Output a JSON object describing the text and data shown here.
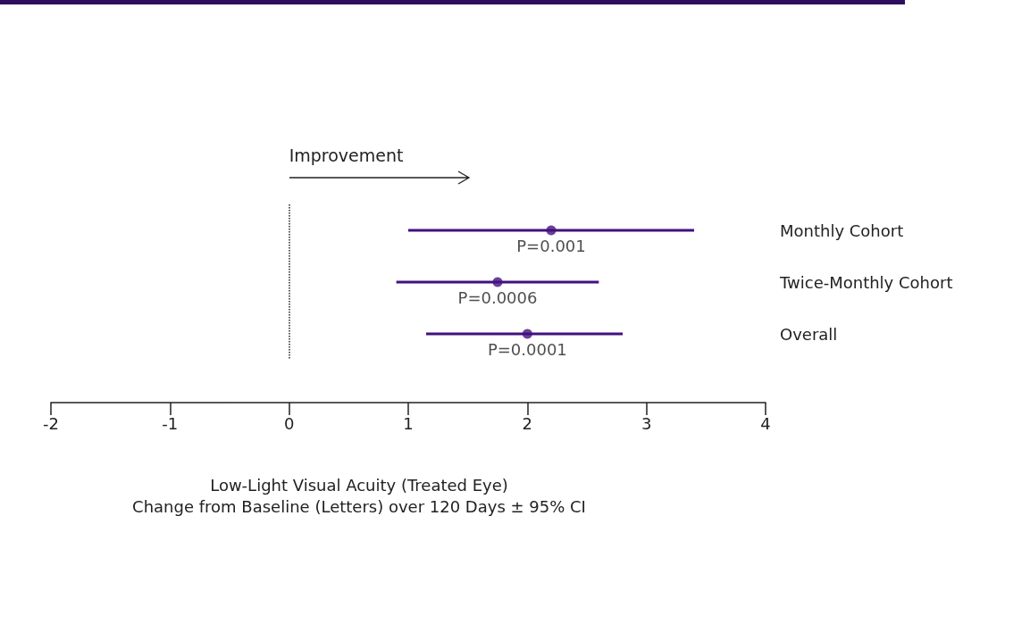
{
  "chart_data": {
    "type": "scatter",
    "orientation": "horizontal",
    "xlabel": "Low-Light Visual Acuity (Treated Eye)\nChange from Baseline (Letters) over 120 Days ± 95% CI",
    "categories": [
      "Monthly Cohort",
      "Twice-Monthly Cohort",
      "Overall"
    ],
    "color": "#43107f",
    "values": [
      2.2,
      1.75,
      2.0
    ],
    "errors": [
      [
        1.0,
        3.4
      ],
      [
        0.9,
        2.6
      ],
      [
        1.15,
        2.8
      ]
    ],
    "xlim": [
      -2,
      4
    ],
    "xticks": [
      -2,
      -1,
      0,
      1,
      2,
      3,
      4
    ],
    "ref_lines": [
      {
        "axis": "x",
        "value": 0,
        "color": "#222222",
        "line_style": "dotted"
      }
    ],
    "annotations": [
      "Improvement",
      {
        "text": "P=0.001",
        "x": 2.2,
        "y": "Monthly Cohort"
      },
      {
        "text": "P=0.0006",
        "x": 1.75,
        "y": "Twice-Monthly Cohort"
      },
      {
        "text": "P=0.0001",
        "x": 2.0,
        "y": "Overall"
      }
    ],
    "marker": "circle"
  }
}
